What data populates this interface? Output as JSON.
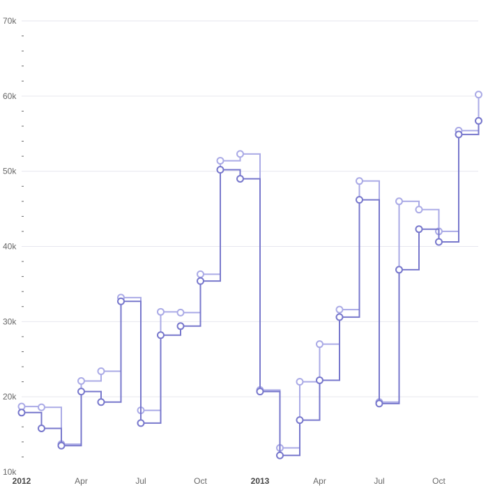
{
  "chart_data": {
    "type": "line",
    "title": "",
    "xlabel": "",
    "ylabel": "",
    "ylim": [
      10000,
      70000
    ],
    "y_ticks": [
      {
        "value": 10000,
        "label": "10k"
      },
      {
        "value": 20000,
        "label": "20k"
      },
      {
        "value": 30000,
        "label": "30k"
      },
      {
        "value": 40000,
        "label": "40k"
      },
      {
        "value": 50000,
        "label": "50k"
      },
      {
        "value": 60000,
        "label": "60k"
      },
      {
        "value": 70000,
        "label": "70k"
      }
    ],
    "x_ticks": [
      {
        "month": 0,
        "label": "2012",
        "bold": true
      },
      {
        "month": 3,
        "label": "Apr",
        "bold": false
      },
      {
        "month": 6,
        "label": "Jul",
        "bold": false
      },
      {
        "month": 9,
        "label": "Oct",
        "bold": false
      },
      {
        "month": 12,
        "label": "2013",
        "bold": true
      },
      {
        "month": 15,
        "label": "Apr",
        "bold": false
      },
      {
        "month": 18,
        "label": "Jul",
        "bold": false
      },
      {
        "month": 21,
        "label": "Oct",
        "bold": false
      }
    ],
    "x": [
      "2012-01",
      "2012-02",
      "2012-03",
      "2012-04",
      "2012-05",
      "2012-06",
      "2012-07",
      "2012-08",
      "2012-09",
      "2012-10",
      "2012-11",
      "2012-12",
      "2013-01",
      "2013-02",
      "2013-03",
      "2013-04",
      "2013-05",
      "2013-06",
      "2013-07",
      "2013-08",
      "2013-09",
      "2013-10",
      "2013-11",
      "2013-12"
    ],
    "curve": "step-after",
    "grid": true,
    "legend": "none",
    "series": [
      {
        "color": "#aaaae6",
        "values": [
          18700,
          18600,
          13700,
          22100,
          23400,
          33200,
          18200,
          31300,
          31200,
          36300,
          51400,
          52300,
          20900,
          13200,
          22000,
          27000,
          31600,
          48700,
          19300,
          46000,
          44900,
          42000,
          55400,
          60200
        ]
      },
      {
        "color": "#7777cc",
        "values": [
          17900,
          15800,
          13500,
          20700,
          19300,
          32700,
          16500,
          28200,
          29400,
          35400,
          50200,
          49000,
          20700,
          12200,
          16900,
          22200,
          30600,
          46200,
          19100,
          36900,
          42300,
          40600,
          54900,
          56700
        ]
      }
    ]
  }
}
